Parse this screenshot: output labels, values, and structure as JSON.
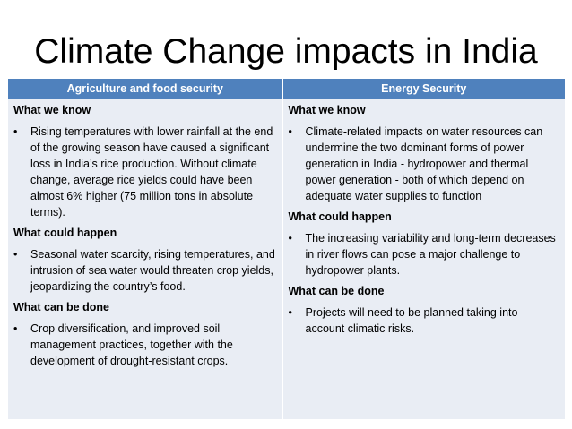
{
  "slide": {
    "title": "Climate Change impacts in India"
  },
  "table": {
    "columns": [
      {
        "header": "Agriculture and food security",
        "sections": [
          {
            "heading": "What we know",
            "bullets": [
              "Rising temperatures with lower rainfall at the end of the growing season have caused a significant loss in India’s rice production. Without climate change, average rice yields could have been almost 6% higher (75 million tons in absolute terms)."
            ]
          },
          {
            "heading": "What could happen",
            "bullets": [
              "Seasonal water scarcity, rising temperatures, and intrusion of sea water would threaten crop yields, jeopardizing the country’s food."
            ]
          },
          {
            "heading": "What can be done",
            "bullets": [
              "Crop diversification, and improved soil management practices, together with the development of drought-resistant crops."
            ]
          }
        ]
      },
      {
        "header": "Energy Security",
        "sections": [
          {
            "heading": "What we know",
            "bullets": [
              "Climate-related impacts on water resources can undermine the two dominant forms of power generation in India - hydropower and thermal power generation - both of which depend on adequate water supplies to function"
            ]
          },
          {
            "heading": "What could happen",
            "bullets": [
              "The increasing variability and long-term decreases in river flows can pose a major challenge to hydropower plants."
            ]
          },
          {
            "heading": "What can be done",
            "bullets": [
              "Projects will need to be planned taking into account climatic risks."
            ]
          }
        ]
      }
    ],
    "bullet_glyph": "•"
  },
  "colors": {
    "header_background": "#4f81bd",
    "header_text": "#ffffff",
    "cell_background": "#e9edf4",
    "text": "#000000"
  }
}
